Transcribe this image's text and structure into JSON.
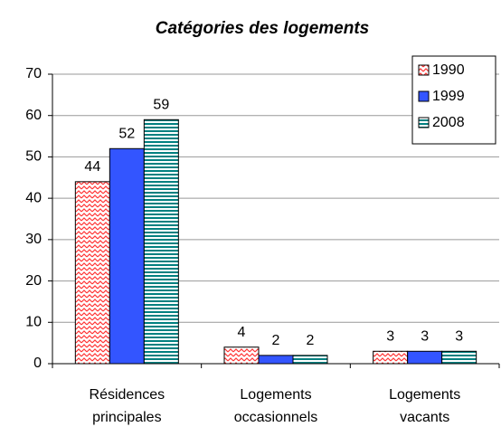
{
  "chart_data": {
    "type": "bar",
    "title": "Catégories des logements",
    "categories": [
      "Résidences principales",
      "Logements occasionnels",
      "Logements vacants"
    ],
    "series": [
      {
        "name": "1990",
        "color": "#ff3333",
        "pattern": "zigzag",
        "values": [
          44,
          4,
          3
        ]
      },
      {
        "name": "1999",
        "color": "#3355ff",
        "pattern": "solid",
        "values": [
          52,
          2,
          3
        ]
      },
      {
        "name": "2008",
        "color": "#008080",
        "pattern": "hstripes",
        "values": [
          59,
          2,
          3
        ]
      }
    ],
    "ylim": [
      0,
      70
    ],
    "yticks": [
      0,
      10,
      20,
      30,
      40,
      50,
      60,
      70
    ],
    "grid": true,
    "legend": "top-right"
  }
}
